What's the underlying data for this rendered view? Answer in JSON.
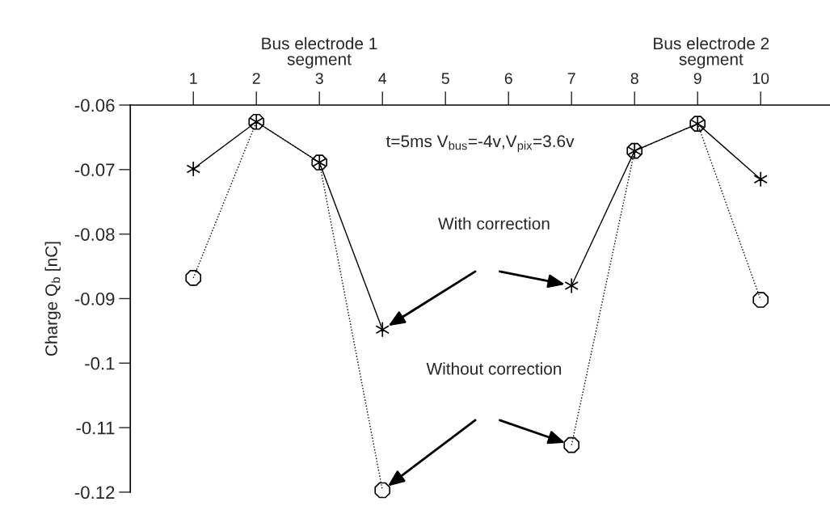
{
  "chart_data": {
    "type": "line",
    "ylabel": "Charge Q$_{b}$ [nC]",
    "x": [
      1,
      2,
      3,
      4,
      5,
      6,
      7,
      8,
      9,
      10
    ],
    "xlim": [
      0,
      11.1
    ],
    "xticks": [
      1,
      2,
      3,
      4,
      5,
      6,
      7,
      8,
      9,
      10
    ],
    "ylim": [
      -0.12,
      -0.06
    ],
    "yticks": [
      {
        "value": -0.06,
        "label": "-0.06"
      },
      {
        "value": -0.07,
        "label": "-0.07"
      },
      {
        "value": -0.08,
        "label": "-0.08"
      },
      {
        "value": -0.09,
        "label": "-0.09"
      },
      {
        "value": -0.1,
        "label": "-0.1"
      },
      {
        "value": -0.11,
        "label": "-0.11"
      },
      {
        "value": -0.12,
        "label": "-0.12"
      }
    ],
    "grid": false,
    "series": [
      {
        "color": "#000000",
        "marker": "cross",
        "line_style": "solid",
        "values": [
          -0.0699,
          -0.0626,
          -0.0689,
          -0.0948,
          null,
          null,
          -0.088,
          -0.0671,
          -0.0629,
          -0.0715
        ]
      },
      {
        "color": "#000000",
        "marker": "circle",
        "line_style": "dotted",
        "values": [
          -0.0868,
          -0.0626,
          -0.0689,
          -0.1197,
          null,
          null,
          -0.1127,
          -0.0671,
          -0.0629,
          -0.0902
        ]
      }
    ],
    "annotations": [
      "Bus electrode 1\nsegment",
      "Bus electrode 2\nsegment",
      "t=5ms V$_{bus}$=-4v,V$_{pix}$=3.6v",
      "With correction",
      "Without correction"
    ]
  }
}
